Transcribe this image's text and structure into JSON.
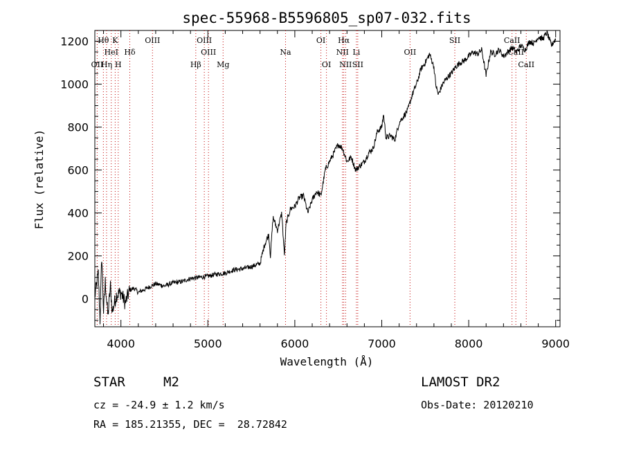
{
  "chart_data": {
    "type": "line",
    "title": "spec-55968-B5596805_sp07-032.fits",
    "xlabel": "Wavelength (Å)",
    "ylabel": "Flux (relative)",
    "xlim": [
      3700,
      9050
    ],
    "ylim": [
      -130,
      1250
    ],
    "xticks": [
      4000,
      5000,
      6000,
      7000,
      8000,
      9000
    ],
    "yticks": [
      0,
      200,
      400,
      600,
      800,
      1000,
      1200
    ],
    "grid": false,
    "series_color": "#000000",
    "line_color": "#c00000",
    "series": [
      {
        "x": [
          3700,
          3740,
          3760,
          3780,
          3800,
          3820,
          3850,
          3880,
          3900,
          3950,
          4000,
          4050,
          4100,
          4150,
          4200,
          4300,
          4400,
          4500,
          4600,
          4700,
          4800,
          4900,
          5000,
          5100,
          5200,
          5300,
          5400,
          5500,
          5600,
          5650,
          5700,
          5720,
          5750,
          5800,
          5850,
          5880,
          5900,
          5950,
          6000,
          6050,
          6100,
          6150,
          6200,
          6250,
          6300,
          6350,
          6400,
          6450,
          6500,
          6550,
          6600,
          6650,
          6700,
          6750,
          6800,
          6850,
          6900,
          6950,
          7000,
          7020,
          7050,
          7100,
          7150,
          7200,
          7250,
          7300,
          7350,
          7400,
          7450,
          7500,
          7550,
          7600,
          7620,
          7650,
          7700,
          7750,
          7800,
          7850,
          7900,
          7950,
          8000,
          8050,
          8100,
          8150,
          8200,
          8250,
          8300,
          8350,
          8400,
          8450,
          8500,
          8550,
          8600,
          8650,
          8700,
          8750,
          8800,
          8850,
          8900,
          8950,
          9000
        ],
        "y": [
          10,
          120,
          -100,
          200,
          -60,
          80,
          -80,
          60,
          -60,
          20,
          30,
          -20,
          40,
          50,
          30,
          50,
          70,
          60,
          75,
          80,
          95,
          100,
          105,
          115,
          120,
          135,
          140,
          150,
          165,
          250,
          300,
          200,
          380,
          320,
          400,
          200,
          350,
          420,
          430,
          470,
          480,
          400,
          460,
          500,
          480,
          600,
          640,
          680,
          720,
          700,
          640,
          660,
          600,
          620,
          640,
          680,
          700,
          780,
          800,
          860,
          750,
          760,
          740,
          820,
          850,
          880,
          950,
          1000,
          1070,
          1100,
          1140,
          1080,
          1000,
          950,
          1000,
          1030,
          1050,
          1080,
          1100,
          1110,
          1130,
          1150,
          1140,
          1160,
          1040,
          1150,
          1140,
          1160,
          1130,
          1150,
          1170,
          1150,
          1180,
          1160,
          1200,
          1190,
          1220,
          1210,
          1240,
          1180,
          1210
        ]
      }
    ],
    "lines": [
      {
        "label": "Hθ",
        "x": 3798,
        "row": 0
      },
      {
        "label": "K",
        "x": 3934,
        "row": 0
      },
      {
        "label": "HeI",
        "x": 3889,
        "row": 1
      },
      {
        "label": "Hδ",
        "x": 4102,
        "row": 1
      },
      {
        "label": "OII",
        "x": 3727,
        "row": 2
      },
      {
        "label": "Hη",
        "x": 3835,
        "row": 2
      },
      {
        "label": "H",
        "x": 3969,
        "row": 2
      },
      {
        "label": "OIII",
        "x": 4363,
        "row": 0
      },
      {
        "label": "OIII",
        "x": 4959,
        "row": 0
      },
      {
        "label": "OIII",
        "x": 5007,
        "row": 1
      },
      {
        "label": "Hβ",
        "x": 4861,
        "row": 2
      },
      {
        "label": "Mg",
        "x": 5175,
        "row": 2
      },
      {
        "label": "Na",
        "x": 5893,
        "row": 1
      },
      {
        "label": "OI",
        "x": 6300,
        "row": 0
      },
      {
        "label": "OI",
        "x": 6364,
        "row": 2
      },
      {
        "label": "Hα",
        "x": 6563,
        "row": 0
      },
      {
        "label": "NII",
        "x": 6548,
        "row": 1
      },
      {
        "label": "Li",
        "x": 6708,
        "row": 1
      },
      {
        "label": "NII",
        "x": 6584,
        "row": 2
      },
      {
        "label": "SII",
        "x": 6724,
        "row": 2
      },
      {
        "label": "OII",
        "x": 7325,
        "row": 1
      },
      {
        "label": "SII",
        "x": 7840,
        "row": 0
      },
      {
        "label": "CaII",
        "x": 8498,
        "row": 0
      },
      {
        "label": "CaII",
        "x": 8542,
        "row": 1
      },
      {
        "label": "CaII",
        "x": 8662,
        "row": 2
      }
    ]
  },
  "info": {
    "object_class": "STAR",
    "subclass": "M2",
    "survey": "LAMOST DR2",
    "redshift_line": "cz = -24.9 ± 1.2 km/s",
    "obs_date_line": "Obs-Date: 20120210",
    "position_line": "RA = 185.21355, DEC =  28.72842"
  }
}
